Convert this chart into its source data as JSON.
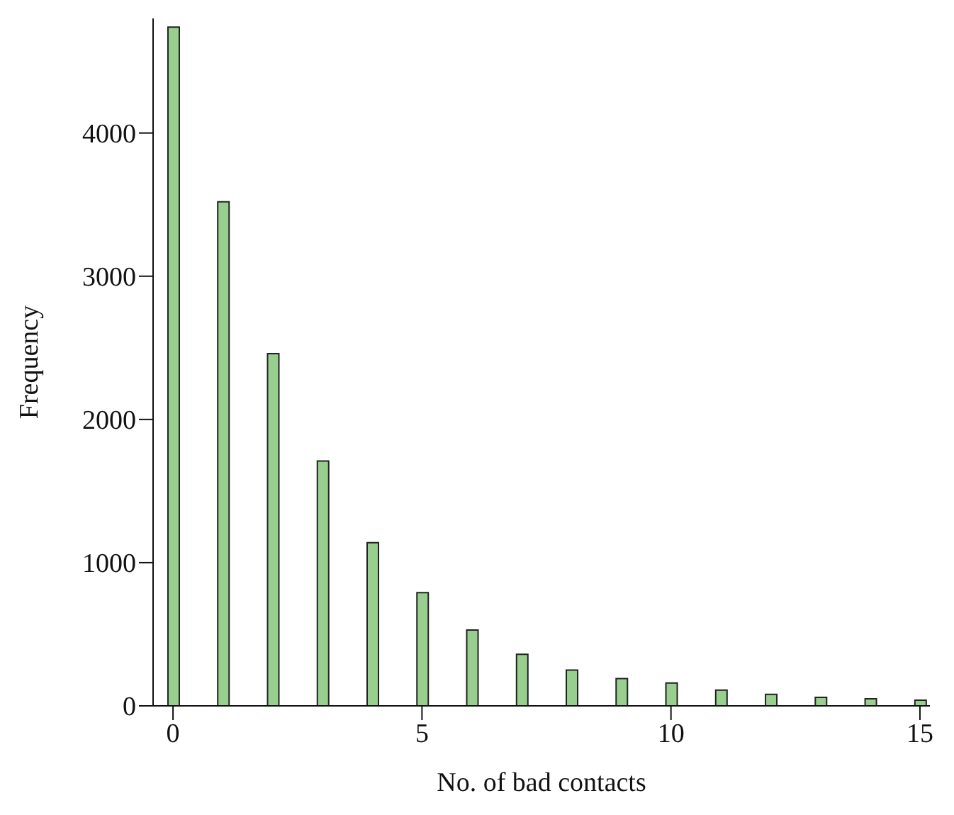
{
  "chart_data": {
    "type": "bar",
    "xlabel": "No. of bad contacts",
    "ylabel": "Frequency",
    "x": [
      0,
      1,
      2,
      3,
      4,
      5,
      6,
      7,
      8,
      9,
      10,
      11,
      12,
      13,
      14,
      15
    ],
    "values": [
      4740,
      3520,
      2460,
      1710,
      1140,
      790,
      530,
      360,
      250,
      190,
      160,
      110,
      80,
      60,
      50,
      40
    ],
    "color": "#98cf8f",
    "xlim": [
      -0.4,
      15.2
    ],
    "xticks": [
      0,
      5,
      10,
      15
    ],
    "ylim": [
      0,
      4800
    ],
    "yticks": [
      0,
      1000,
      2000,
      3000,
      4000
    ],
    "grid": false,
    "legend": false
  }
}
